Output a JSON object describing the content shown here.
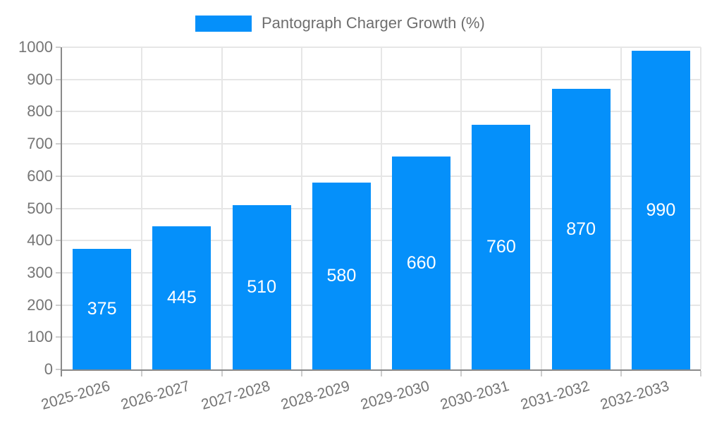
{
  "chart_data": {
    "type": "bar",
    "title": "Pantograph Charger Growth (%)",
    "legend": {
      "position": "top",
      "entries": [
        "Pantograph Charger Growth (%)"
      ]
    },
    "categories": [
      "2025-2026",
      "2026-2027",
      "2027-2028",
      "2028-2029",
      "2029-2030",
      "2030-2031",
      "2031-2032",
      "2032-2033"
    ],
    "series": [
      {
        "name": "Pantograph Charger Growth (%)",
        "values": [
          375,
          445,
          510,
          580,
          660,
          760,
          870,
          990
        ]
      }
    ],
    "value_labels": "inside-center",
    "xlabel": "",
    "ylabel": "",
    "ylim": [
      0,
      1000
    ],
    "yticks": [
      0,
      100,
      200,
      300,
      400,
      500,
      600,
      700,
      800,
      900,
      1000
    ],
    "grid": true,
    "x_label_rotation_deg": -16,
    "colors": {
      "bar": "#0590fa",
      "grid": "#e6e6e6",
      "axis": "#8a8a8a",
      "tick": "#cdcdcd",
      "text": "#757575",
      "legend_text": "#6e6e6e",
      "value_label": "#ffffff",
      "background": "#ffffff"
    }
  }
}
